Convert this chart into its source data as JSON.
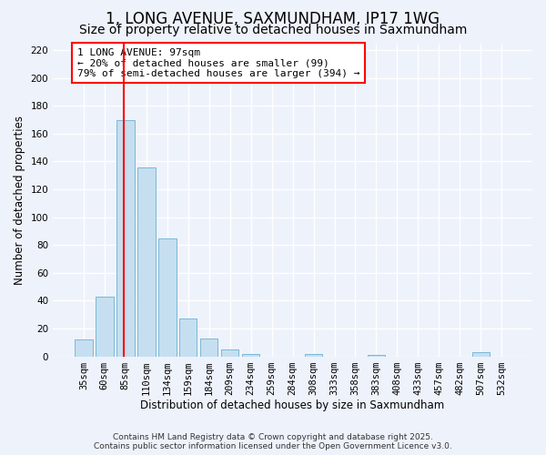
{
  "title_line1": "1, LONG AVENUE, SAXMUNDHAM, IP17 1WG",
  "title_line2": "Size of property relative to detached houses in Saxmundham",
  "xlabel": "Distribution of detached houses by size in Saxmundham",
  "ylabel": "Number of detached properties",
  "bar_color": "#c5dff0",
  "bar_edge_color": "#7bb8d4",
  "background_color": "#eef2fb",
  "grid_color": "#ffffff",
  "categories": [
    "35sqm",
    "60sqm",
    "85sqm",
    "110sqm",
    "134sqm",
    "159sqm",
    "184sqm",
    "209sqm",
    "234sqm",
    "259sqm",
    "284sqm",
    "308sqm",
    "333sqm",
    "358sqm",
    "383sqm",
    "408sqm",
    "433sqm",
    "457sqm",
    "482sqm",
    "507sqm",
    "532sqm"
  ],
  "values": [
    12,
    43,
    170,
    136,
    85,
    27,
    13,
    5,
    2,
    0,
    0,
    2,
    0,
    0,
    1,
    0,
    0,
    0,
    0,
    3,
    0
  ],
  "ylim": [
    0,
    225
  ],
  "yticks": [
    0,
    20,
    40,
    60,
    80,
    100,
    120,
    140,
    160,
    180,
    200,
    220
  ],
  "property_line_bar_index": 2,
  "annotation_title": "1 LONG AVENUE: 97sqm",
  "annotation_line1": "← 20% of detached houses are smaller (99)",
  "annotation_line2": "79% of semi-detached houses are larger (394) →",
  "footer_line1": "Contains HM Land Registry data © Crown copyright and database right 2025.",
  "footer_line2": "Contains public sector information licensed under the Open Government Licence v3.0.",
  "title_fontsize": 12,
  "subtitle_fontsize": 10,
  "axis_label_fontsize": 8.5,
  "tick_fontsize": 7.5,
  "annotation_fontsize": 8,
  "footer_fontsize": 6.5
}
